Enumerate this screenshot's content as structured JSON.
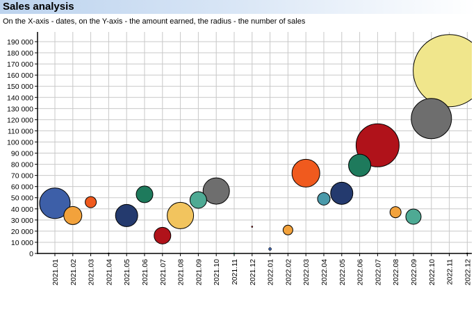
{
  "header": {
    "title": "Sales analysis",
    "subtitle": "On the X-axis - dates, on the Y-axis - the amount earned, the radius - the number of sales"
  },
  "chart_data": {
    "type": "scatter",
    "title": "Sales analysis",
    "subtitle": "On the X-axis - dates, on the Y-axis - the amount earned, the radius - the number of sales",
    "xlabel": "",
    "ylabel": "",
    "categories": [
      "2021.01",
      "2021.02",
      "2021.03",
      "2021.04",
      "2021.05",
      "2021.06",
      "2021.07",
      "2021.08",
      "2021.09",
      "2021.10",
      "2021.11",
      "2021.12",
      "2022.01",
      "2022.02",
      "2022.03",
      "2022.04",
      "2022.05",
      "2022.06",
      "2022.07",
      "2022.08",
      "2022.09",
      "2022.10",
      "2022.11",
      "2022.12"
    ],
    "y_ticks": [
      0,
      10000,
      20000,
      30000,
      40000,
      50000,
      60000,
      70000,
      80000,
      90000,
      100000,
      110000,
      120000,
      130000,
      140000,
      150000,
      160000,
      170000,
      180000,
      190000
    ],
    "y_tick_labels": [
      "0",
      "10 000",
      "20 000",
      "30 000",
      "40 000",
      "50 000",
      "60 000",
      "70 000",
      "80 000",
      "90 000",
      "100 000",
      "110 000",
      "120 000",
      "130 000",
      "140 000",
      "150 000",
      "160 000",
      "170 000",
      "180 000",
      "190 000"
    ],
    "ylim": [
      0,
      195000
    ],
    "grid": true,
    "points": [
      {
        "x": "2021.01",
        "y": 45000,
        "size": 22,
        "color": "#3d5fa8"
      },
      {
        "x": "2021.02",
        "y": 34000,
        "size": 13,
        "color": "#f2a23c"
      },
      {
        "x": "2021.03",
        "y": 46000,
        "size": 8,
        "color": "#f05a1e"
      },
      {
        "x": "2021.04",
        "y": 0,
        "size": 1,
        "color": "#000000"
      },
      {
        "x": "2021.05",
        "y": 34000,
        "size": 16,
        "color": "#243a6e"
      },
      {
        "x": "2021.06",
        "y": 53000,
        "size": 12,
        "color": "#1e7a5c"
      },
      {
        "x": "2021.07",
        "y": 16000,
        "size": 12,
        "color": "#b0121a"
      },
      {
        "x": "2021.08",
        "y": 34000,
        "size": 19,
        "color": "#f2c45e"
      },
      {
        "x": "2021.09",
        "y": 48000,
        "size": 12,
        "color": "#4eaa94"
      },
      {
        "x": "2021.10",
        "y": 56000,
        "size": 19,
        "color": "#6e6e6e"
      },
      {
        "x": "2021.11",
        "y": 0,
        "size": 1,
        "color": "#1e7a5c"
      },
      {
        "x": "2021.12",
        "y": 24000,
        "size": 1,
        "color": "#b0121a"
      },
      {
        "x": "2022.01",
        "y": 4000,
        "size": 2,
        "color": "#3d5fa8"
      },
      {
        "x": "2022.02",
        "y": 21000,
        "size": 7,
        "color": "#f2a23c"
      },
      {
        "x": "2022.03",
        "y": 72000,
        "size": 20,
        "color": "#f05a1e"
      },
      {
        "x": "2022.04",
        "y": 49000,
        "size": 9,
        "color": "#4a9aaa"
      },
      {
        "x": "2022.05",
        "y": 54000,
        "size": 16,
        "color": "#243a6e"
      },
      {
        "x": "2022.06",
        "y": 79000,
        "size": 16,
        "color": "#1e7a5c"
      },
      {
        "x": "2022.07",
        "y": 97000,
        "size": 31,
        "color": "#b0121a"
      },
      {
        "x": "2022.08",
        "y": 37000,
        "size": 8,
        "color": "#f2a23c"
      },
      {
        "x": "2022.09",
        "y": 33000,
        "size": 11,
        "color": "#4eaa94"
      },
      {
        "x": "2022.10",
        "y": 121000,
        "size": 29,
        "color": "#6e6e6e"
      },
      {
        "x": "2022.11",
        "y": 164000,
        "size": 52,
        "color": "#f0e68c"
      },
      {
        "x": "2022.12",
        "y": 0,
        "size": 1,
        "color": "#000000"
      }
    ]
  }
}
